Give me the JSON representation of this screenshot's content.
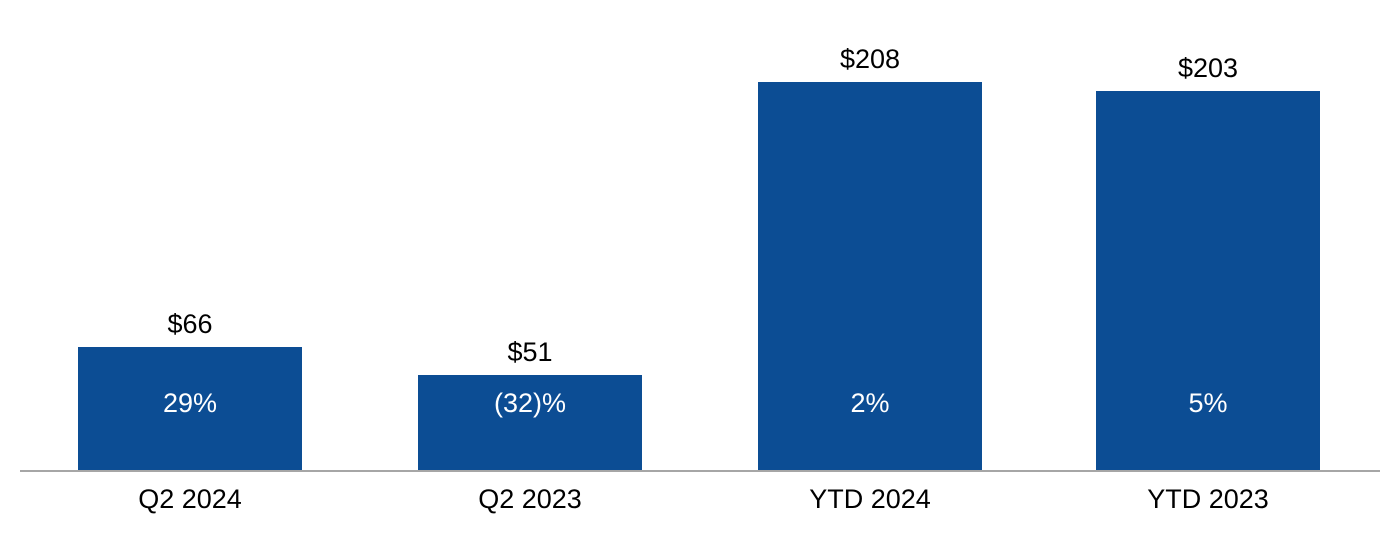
{
  "chart_data": {
    "type": "bar",
    "categories": [
      "Q2 2024",
      "Q2 2023",
      "YTD 2024",
      "YTD 2023"
    ],
    "values": [
      66,
      51,
      208,
      203
    ],
    "value_labels": [
      "$66",
      "$51",
      "$208",
      "$203"
    ],
    "inner_labels": [
      "29%",
      "(32)%",
      "2%",
      "5%"
    ],
    "ylim": [
      0,
      208
    ],
    "grid": false,
    "legend": false
  },
  "colors": {
    "bar_fill": "#0C4D94",
    "axis_line": "#A6A6A6",
    "value_label_text": "#000000",
    "inner_label_text": "#FFFFFF"
  }
}
